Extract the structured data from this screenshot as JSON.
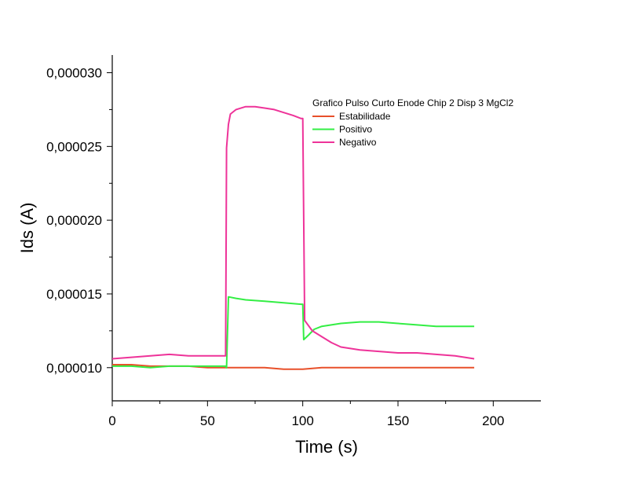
{
  "chart_data": {
    "type": "line",
    "xlabel": "Time (s)",
    "ylabel": "Ids (A)",
    "xlim": [
      0,
      225
    ],
    "ylim": [
      7.75e-06,
      3.12e-05
    ],
    "x_ticks": [
      0,
      50,
      100,
      150,
      200
    ],
    "x_tick_labels": [
      "0",
      "50",
      "100",
      "150",
      "200"
    ],
    "y_ticks": [
      1e-05,
      1.5e-05,
      2e-05,
      2.5e-05,
      3e-05
    ],
    "y_tick_labels": [
      "0,000010",
      "0,000015",
      "0,000020",
      "0,000025",
      "0,000030"
    ],
    "legend_title": "Grafico Pulso Curto Enode Chip 2 Disp 3 MgCl2",
    "legend_position": "top-right",
    "grid": false,
    "series": [
      {
        "name": "Estabilidade",
        "color": "#e8502a",
        "x": [
          0,
          10,
          20,
          30,
          40,
          50,
          60,
          70,
          80,
          90,
          100,
          110,
          120,
          130,
          140,
          150,
          160,
          170,
          180,
          190
        ],
        "y": [
          1.02e-05,
          1.02e-05,
          1.01e-05,
          1.01e-05,
          1.01e-05,
          1e-05,
          1e-05,
          1e-05,
          1e-05,
          9.9e-06,
          9.9e-06,
          1e-05,
          1e-05,
          1e-05,
          1e-05,
          1e-05,
          1e-05,
          1e-05,
          1e-05,
          1e-05
        ]
      },
      {
        "name": "Positivo",
        "color": "#33ee44",
        "x": [
          0,
          10,
          20,
          30,
          40,
          50,
          59.5,
          60,
          61,
          65,
          70,
          80,
          90,
          99,
          100,
          100.5,
          103,
          106,
          110,
          120,
          130,
          140,
          150,
          160,
          170,
          180,
          190
        ],
        "y": [
          1.01e-05,
          1.01e-05,
          1e-05,
          1.01e-05,
          1.01e-05,
          1.01e-05,
          1.01e-05,
          1e-05,
          1.48e-05,
          1.47e-05,
          1.46e-05,
          1.45e-05,
          1.44e-05,
          1.43e-05,
          1.43e-05,
          1.19e-05,
          1.22e-05,
          1.26e-05,
          1.28e-05,
          1.3e-05,
          1.31e-05,
          1.31e-05,
          1.3e-05,
          1.29e-05,
          1.28e-05,
          1.28e-05,
          1.28e-05
        ]
      },
      {
        "name": "Negativo",
        "color": "#ee3399",
        "x": [
          0,
          10,
          20,
          30,
          40,
          50,
          59.5,
          60,
          61,
          62,
          65,
          70,
          75,
          80,
          85,
          90,
          95,
          99,
          100,
          101,
          105,
          110,
          115,
          120,
          130,
          140,
          150,
          160,
          170,
          180,
          190
        ],
        "y": [
          1.06e-05,
          1.07e-05,
          1.08e-05,
          1.09e-05,
          1.08e-05,
          1.08e-05,
          1.08e-05,
          2.49e-05,
          2.65e-05,
          2.72e-05,
          2.75e-05,
          2.77e-05,
          2.77e-05,
          2.76e-05,
          2.75e-05,
          2.73e-05,
          2.71e-05,
          2.69e-05,
          2.69e-05,
          1.32e-05,
          1.25e-05,
          1.21e-05,
          1.17e-05,
          1.14e-05,
          1.12e-05,
          1.11e-05,
          1.1e-05,
          1.1e-05,
          1.09e-05,
          1.08e-05,
          1.06e-05
        ]
      }
    ]
  }
}
